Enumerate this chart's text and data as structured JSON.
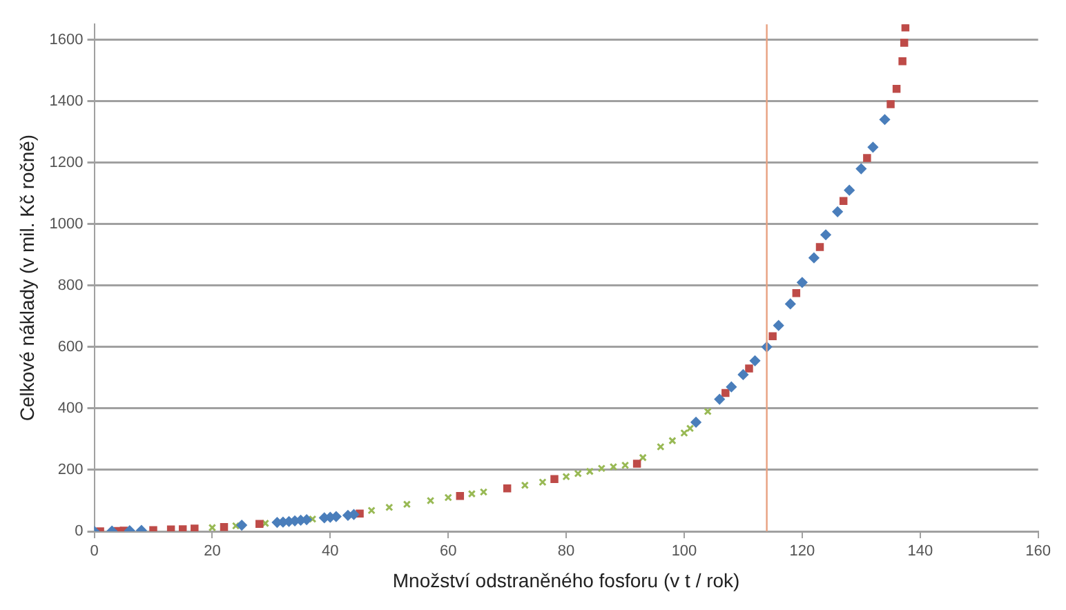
{
  "chart_data": {
    "type": "scatter",
    "xlabel": "Množství odstraněného fosforu (v t / rok)",
    "ylabel": "Celkové náklady (v mil. Kč ročně)",
    "xlim": [
      0,
      160
    ],
    "xticks": [
      0,
      20,
      40,
      60,
      80,
      100,
      120,
      140,
      160
    ],
    "ylim": [
      0,
      1650
    ],
    "yticks": [
      0,
      200,
      400,
      600,
      800,
      1000,
      1200,
      1400,
      1600
    ],
    "grid": "y",
    "legend": false,
    "ref_lines": [
      {
        "axis": "x",
        "value": 114,
        "color": "#e8a080"
      }
    ],
    "series": [
      {
        "color": "#4a7ebb",
        "marker": "diamond",
        "x": [
          0,
          3,
          6,
          8,
          25,
          31,
          32,
          33,
          34,
          35,
          36,
          39,
          40,
          41,
          43,
          44,
          102,
          106,
          108,
          110,
          112,
          114,
          116,
          118,
          120,
          122,
          124,
          126,
          128,
          130,
          132,
          134
        ],
        "values": [
          0,
          1,
          2,
          3,
          20,
          29,
          30,
          32,
          34,
          36,
          38,
          44,
          46,
          48,
          52,
          55,
          355,
          430,
          470,
          510,
          555,
          600,
          670,
          740,
          810,
          890,
          965,
          1040,
          1110,
          1180,
          1250,
          1340
        ]
      },
      {
        "color": "#be4b48",
        "marker": "square",
        "x": [
          1,
          4,
          5,
          10,
          13,
          15,
          17,
          22,
          28,
          45,
          62,
          70,
          78,
          92,
          107,
          111,
          115,
          119,
          123,
          127,
          131,
          135,
          136,
          137,
          137.3,
          137.5
        ],
        "values": [
          0,
          1,
          2,
          4,
          6,
          7,
          9,
          14,
          24,
          58,
          115,
          140,
          170,
          220,
          450,
          530,
          635,
          775,
          925,
          1075,
          1215,
          1390,
          1440,
          1530,
          1590,
          1640
        ]
      },
      {
        "color": "#98b954",
        "marker": "cross",
        "x": [
          20,
          24,
          29,
          37,
          47,
          50,
          53,
          57,
          60,
          64,
          66,
          73,
          76,
          80,
          82,
          84,
          86,
          88,
          90,
          93,
          96,
          98,
          100,
          101,
          104
        ],
        "values": [
          12,
          18,
          26,
          40,
          68,
          78,
          88,
          100,
          110,
          122,
          128,
          150,
          160,
          178,
          188,
          195,
          205,
          210,
          215,
          240,
          275,
          295,
          320,
          335,
          390
        ]
      }
    ]
  }
}
